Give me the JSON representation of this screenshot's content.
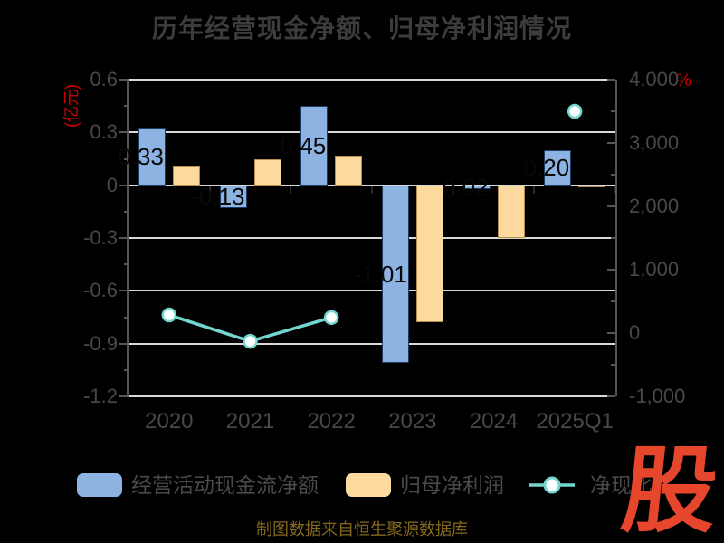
{
  "title": "历年经营现金净额、归母净利润情况",
  "axes": {
    "left": {
      "unit": "(亿元)",
      "ticks": [
        "0.6",
        "0.3",
        "0",
        "-0.3",
        "-0.6",
        "-0.9",
        "-1.2"
      ]
    },
    "right": {
      "unit": "%",
      "ticks": [
        "4,000",
        "3,000",
        "2,000",
        "1,000",
        "0",
        "-1,000"
      ]
    }
  },
  "chart_data": {
    "type": "bar",
    "categories": [
      "2020",
      "2021",
      "2022",
      "2023",
      "2024",
      "2025Q1"
    ],
    "series": [
      {
        "name": "经营活动现金流净额",
        "type": "bar",
        "yaxis": "left",
        "color": "#8db3e2",
        "border_color": "#1d3a5f",
        "values": [
          0.33,
          -0.13,
          0.45,
          -1.01,
          -0.02,
          0.2
        ],
        "data_labels": [
          "0.33",
          "-0.13",
          "0.45",
          "-1.01",
          "-0.02",
          "0.20"
        ]
      },
      {
        "name": "归母净利润",
        "type": "bar",
        "yaxis": "left",
        "color": "#fcd99e",
        "border_color": "#b3914a",
        "values": [
          0.11,
          0.15,
          0.17,
          -0.78,
          -0.3,
          0.0
        ]
      },
      {
        "name": "净现比",
        "type": "line",
        "yaxis": "right",
        "color": "#74d7cf",
        "marker_fill": "#ffffff",
        "values": [
          285,
          -130,
          245,
          null,
          null,
          3500
        ]
      }
    ],
    "left_axis_range": [
      -1.2,
      0.6
    ],
    "right_axis_range": [
      -1000,
      4000
    ],
    "grid": true,
    "legend_position": "bottom"
  },
  "legend": {
    "items": [
      {
        "label": "经营活动现金流净额"
      },
      {
        "label": "归母净利润"
      },
      {
        "label": "净现比"
      }
    ]
  },
  "caption": "制图数据来自恒生聚源数据库",
  "watermark": "股",
  "colors": {
    "background": "#000000",
    "title_text": "#3c3c3c",
    "axis_text": "#484848",
    "grid_line": "#d8d8d8",
    "axis_line": "#565656",
    "unit_text": "#d40000",
    "caption_text": "#86691b",
    "watermark_red": "#e6472c",
    "bar_label_text": "#080808"
  }
}
